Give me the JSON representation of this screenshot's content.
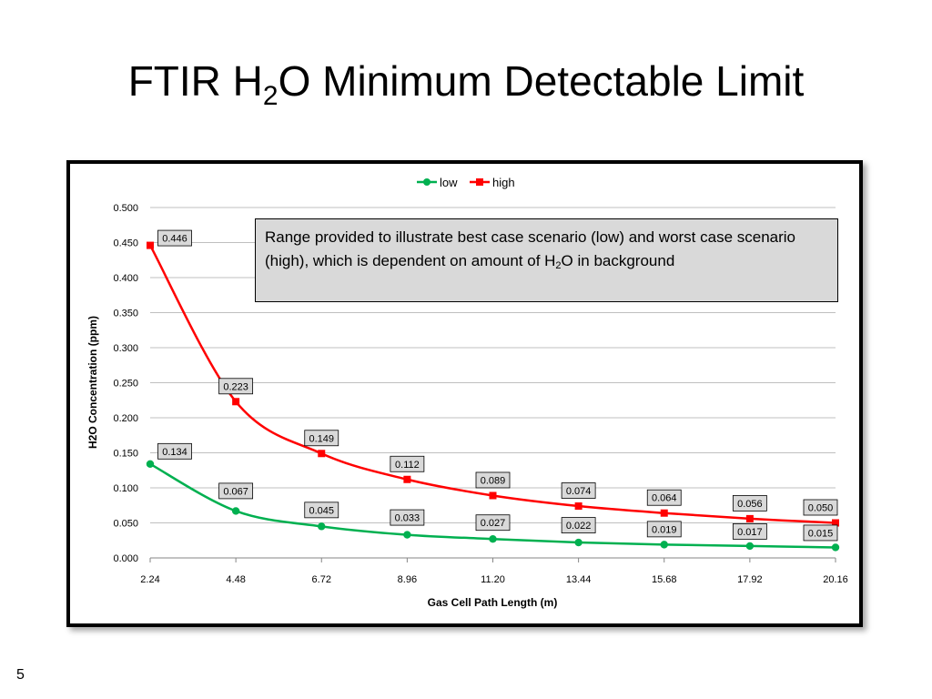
{
  "slide": {
    "title_before": "FTIR H",
    "title_sub": "2",
    "title_after": "O Minimum Detectable Limit",
    "page_number": "5"
  },
  "note": {
    "text_before": "Range provided to illustrate best case scenario (low) and worst case scenario (high), which is dependent on amount of H",
    "text_sub": "2",
    "text_after": "O in background"
  },
  "chart_data": {
    "type": "line",
    "xlabel": "Gas Cell Path Length (m)",
    "ylabel": "H2O Concentration (ppm)",
    "categories": [
      "2.24",
      "4.48",
      "6.72",
      "8.96",
      "11.20",
      "13.44",
      "15.68",
      "17.92",
      "20.16"
    ],
    "x": [
      2.24,
      4.48,
      6.72,
      8.96,
      11.2,
      13.44,
      15.68,
      17.92,
      20.16
    ],
    "ylim": [
      0,
      0.5
    ],
    "yticks": [
      "0.000",
      "0.050",
      "0.100",
      "0.150",
      "0.200",
      "0.250",
      "0.300",
      "0.350",
      "0.400",
      "0.450",
      "0.500"
    ],
    "grid": true,
    "legend_position": "top",
    "series": [
      {
        "name": "low",
        "color": "#00b050",
        "marker": "circle",
        "values": [
          0.134,
          0.067,
          0.045,
          0.033,
          0.027,
          0.022,
          0.019,
          0.017,
          0.015
        ],
        "labels": [
          "0.134",
          "0.067",
          "0.045",
          "0.033",
          "0.027",
          "0.022",
          "0.019",
          "0.017",
          "0.015"
        ]
      },
      {
        "name": "high",
        "color": "#ff0000",
        "marker": "square",
        "values": [
          0.446,
          0.223,
          0.149,
          0.112,
          0.089,
          0.074,
          0.064,
          0.056,
          0.05
        ],
        "labels": [
          "0.446",
          "0.223",
          "0.149",
          "0.112",
          "0.089",
          "0.074",
          "0.064",
          "0.056",
          "0.050"
        ]
      }
    ]
  }
}
